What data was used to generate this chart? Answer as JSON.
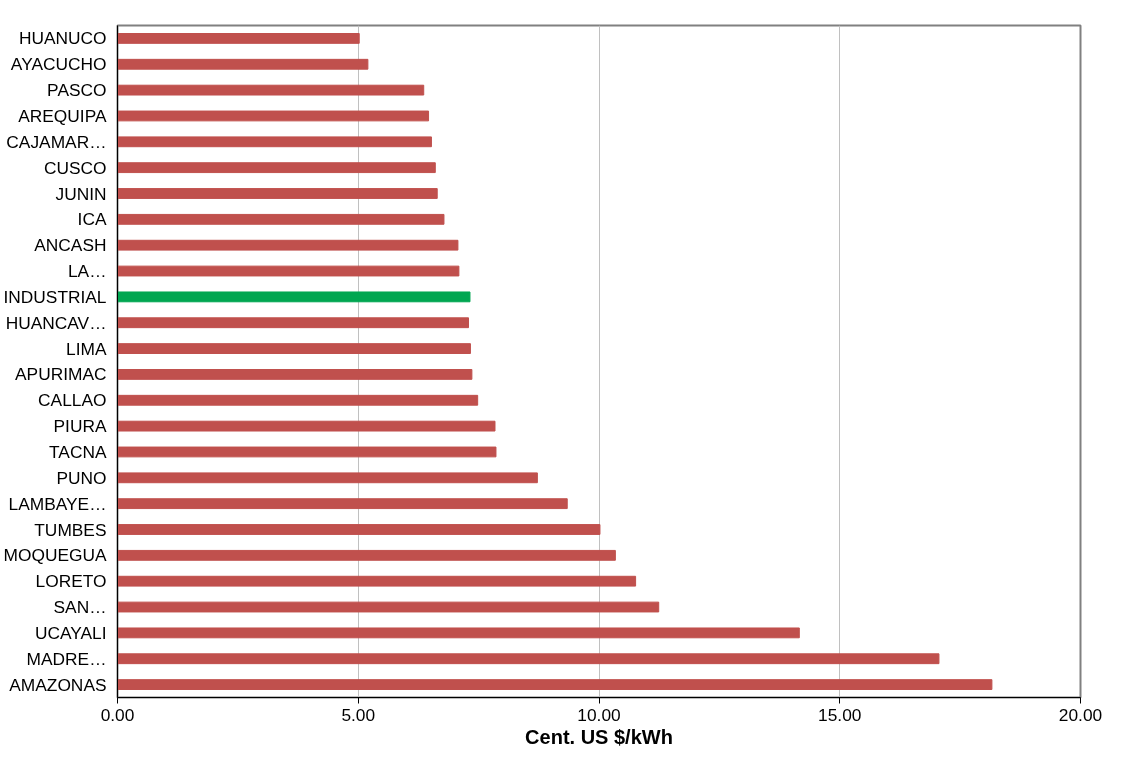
{
  "chart_data": {
    "type": "bar",
    "orientation": "horizontal",
    "xlabel": "Cent. US $/kWh",
    "categories": [
      "HUANUCO",
      "AYACUCHO",
      "PASCO",
      "AREQUIPA",
      "CAJAMAR…",
      "CUSCO",
      "JUNIN",
      "ICA",
      "ANCASH",
      "LA…",
      "INDUSTRIAL",
      "HUANCAV…",
      "LIMA",
      "APURIMAC",
      "CALLAO",
      "PIURA",
      "TACNA",
      "PUNO",
      "LAMBAYE…",
      "TUMBES",
      "MOQUEGUA",
      "LORETO",
      "SAN…",
      "UCAYALI",
      "MADRE…",
      "AMAZONAS"
    ],
    "values": [
      5.02,
      5.2,
      6.36,
      6.46,
      6.52,
      6.6,
      6.64,
      6.78,
      7.07,
      7.09,
      7.32,
      7.29,
      7.33,
      7.36,
      7.48,
      7.84,
      7.86,
      8.72,
      9.34,
      10.02,
      10.34,
      10.76,
      11.24,
      14.16,
      17.06,
      18.16
    ],
    "colors": [
      "#c0504d",
      "#c0504d",
      "#c0504d",
      "#c0504d",
      "#c0504d",
      "#c0504d",
      "#c0504d",
      "#c0504d",
      "#c0504d",
      "#c0504d",
      "#00a651",
      "#c0504d",
      "#c0504d",
      "#c0504d",
      "#c0504d",
      "#c0504d",
      "#c0504d",
      "#c0504d",
      "#c0504d",
      "#c0504d",
      "#c0504d",
      "#c0504d",
      "#c0504d",
      "#c0504d",
      "#c0504d",
      "#c0504d"
    ],
    "xlim": [
      0,
      20
    ],
    "xticks": [
      {
        "value": 0,
        "label": "0.00"
      },
      {
        "value": 5,
        "label": "5.00"
      },
      {
        "value": 10,
        "label": "10.00"
      },
      {
        "value": 15,
        "label": "15.00"
      },
      {
        "value": 20,
        "label": "20.00"
      }
    ],
    "grid": "x"
  }
}
